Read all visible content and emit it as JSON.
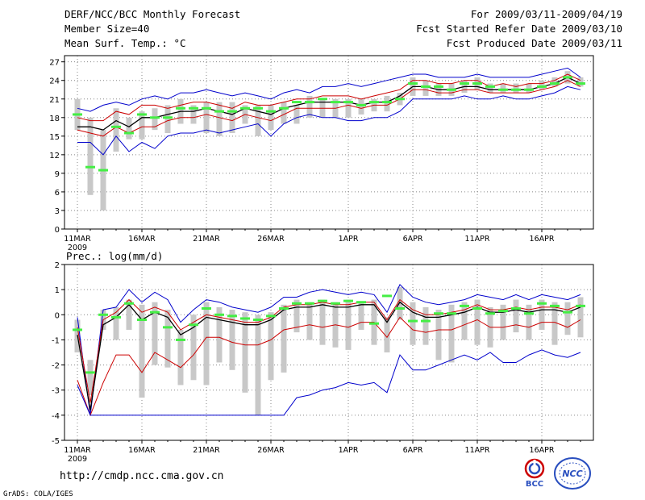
{
  "header": {
    "line1_left": "DERF/NCC/BCC Monthly Forecast",
    "line2_left": "Member Size=40",
    "line3_left": "Mean Surf. Temp.: °C",
    "line1_right": "For 2009/03/11-2009/04/19",
    "line2_right": "Fcst Started Refer Date 2009/03/10",
    "line3_right": "Fcst Produced Date 2009/03/11"
  },
  "footer": {
    "url": "http://cmdp.ncc.cma.gov.cn",
    "credit": "GrADS: COLA/IGES",
    "logo_left_text": "BCC",
    "logo_right_text": "NCC"
  },
  "colors": {
    "envelope": "#0000cc",
    "spread": "#cc0000",
    "mean": "#000000",
    "member_range": "#c8c8c8",
    "median": "#44ee44",
    "grid": "#888888"
  },
  "chart_data": [
    {
      "type": "line",
      "title": "Mean Surf. Temp.: °C",
      "x_ticks": [
        "11MAR",
        "16MAR",
        "21MAR",
        "26MAR",
        "1APR",
        "6APR",
        "11APR",
        "16APR"
      ],
      "x_tick_days": [
        1,
        6,
        11,
        16,
        22,
        27,
        32,
        37
      ],
      "year_label": "2009",
      "xlim": [
        0,
        41
      ],
      "ylim": [
        0,
        28
      ],
      "y_ticks": [
        0,
        3,
        6,
        9,
        12,
        15,
        18,
        21,
        24,
        27
      ],
      "days": [
        1,
        2,
        3,
        4,
        5,
        6,
        7,
        8,
        9,
        10,
        11,
        12,
        13,
        14,
        15,
        16,
        17,
        18,
        19,
        20,
        21,
        22,
        23,
        24,
        25,
        26,
        27,
        28,
        29,
        30,
        31,
        32,
        33,
        34,
        35,
        36,
        37,
        38,
        39,
        40
      ],
      "series": [
        {
          "name": "max",
          "values": [
            19.5,
            19,
            20,
            20.5,
            20,
            21,
            21.5,
            21,
            22,
            22,
            22.5,
            22,
            21.5,
            22,
            21.5,
            21,
            22,
            22.5,
            22,
            23,
            23,
            23.5,
            23,
            23.5,
            24,
            24.5,
            25,
            25,
            24.5,
            24.5,
            24.5,
            25,
            24.5,
            24.5,
            24.5,
            24.5,
            25,
            25.5,
            26,
            24.5
          ]
        },
        {
          "name": "upper",
          "values": [
            18,
            17.5,
            17.5,
            19,
            18.5,
            20,
            20,
            19.5,
            20,
            20.5,
            20.5,
            20,
            19.5,
            20.5,
            20,
            20,
            20.5,
            21,
            21,
            21.5,
            21.5,
            21.5,
            21,
            21.5,
            22,
            22.5,
            24,
            24,
            23.5,
            23.5,
            24,
            24,
            23,
            23.5,
            23,
            23.5,
            23.5,
            24,
            25,
            24
          ]
        },
        {
          "name": "mean",
          "values": [
            16.5,
            16.5,
            16,
            17.5,
            16.5,
            18,
            18,
            18.5,
            19,
            19,
            19.5,
            19,
            18.5,
            19.5,
            19,
            18.5,
            19.5,
            20,
            20.5,
            20.5,
            20.5,
            20.5,
            20,
            20.5,
            20.5,
            21.5,
            23,
            23,
            22.5,
            22.5,
            23,
            23,
            22.5,
            22.5,
            22.5,
            22.5,
            23,
            23.5,
            24.5,
            23.5
          ]
        },
        {
          "name": "lower",
          "values": [
            16,
            15.5,
            15,
            16.5,
            15.5,
            16.5,
            16.5,
            17.5,
            18,
            18,
            18.5,
            18,
            17.5,
            18.5,
            18,
            17.5,
            18.5,
            19.5,
            19.5,
            19.5,
            19.5,
            20,
            19.5,
            20,
            20,
            21,
            22.5,
            22.5,
            22,
            22,
            22.5,
            22.5,
            22,
            22,
            22,
            22,
            22.5,
            23,
            24,
            23
          ]
        },
        {
          "name": "min",
          "values": [
            14,
            14,
            12,
            15,
            12.5,
            14,
            13,
            15,
            15.5,
            15.5,
            16,
            15.5,
            16,
            16.5,
            17,
            15,
            17,
            18,
            18.5,
            18,
            18,
            17.5,
            17.5,
            18,
            18,
            19,
            21,
            21,
            21,
            21,
            21.5,
            21,
            21,
            21.5,
            21,
            21,
            21.5,
            22,
            23,
            22.5
          ]
        }
      ],
      "member_range": [
        [
          16,
          21
        ],
        [
          5.5,
          18
        ],
        [
          3,
          16
        ],
        [
          12.5,
          19.5
        ],
        [
          14.5,
          18
        ],
        [
          14.5,
          19
        ],
        [
          16,
          19.5
        ],
        [
          15.5,
          20
        ],
        [
          17,
          21
        ],
        [
          17,
          20
        ],
        [
          15.5,
          20.5
        ],
        [
          15,
          20.5
        ],
        [
          15.5,
          20.5
        ],
        [
          17,
          20
        ],
        [
          15,
          20
        ],
        [
          16,
          20
        ],
        [
          17,
          20.5
        ],
        [
          17,
          20
        ],
        [
          18,
          21.5
        ],
        [
          18,
          21
        ],
        [
          18,
          21
        ],
        [
          18,
          21
        ],
        [
          18.5,
          21
        ],
        [
          19,
          21
        ],
        [
          19,
          21.5
        ],
        [
          20,
          22
        ],
        [
          21.5,
          24.5
        ],
        [
          21.5,
          24
        ],
        [
          21.5,
          23.5
        ],
        [
          21.5,
          23.5
        ],
        [
          22,
          24
        ],
        [
          22.5,
          24.5
        ],
        [
          22,
          23.5
        ],
        [
          22,
          23.5
        ],
        [
          22,
          23.5
        ],
        [
          22,
          23.5
        ],
        [
          22.5,
          24
        ],
        [
          23,
          24.5
        ],
        [
          23.5,
          25.5
        ],
        [
          23,
          24.5
        ]
      ],
      "median": [
        18.5,
        10,
        9.5,
        16.5,
        15.5,
        18.5,
        18,
        18,
        19.5,
        19.5,
        19.5,
        19,
        19,
        19.5,
        19.5,
        19,
        19.5,
        20.5,
        20.5,
        21,
        20.5,
        20.5,
        20,
        20.5,
        20.5,
        21,
        23.5,
        23,
        23,
        22.5,
        23.5,
        23.5,
        23,
        22.5,
        22.5,
        22.5,
        23,
        23.5,
        24.5,
        23.5
      ]
    },
    {
      "type": "line",
      "title": "Prec.: log(mm/d)",
      "x_ticks": [
        "11MAR",
        "16MAR",
        "21MAR",
        "26MAR",
        "1APR",
        "6APR",
        "11APR",
        "16APR"
      ],
      "x_tick_days": [
        1,
        6,
        11,
        16,
        22,
        27,
        32,
        37
      ],
      "year_label": "2009",
      "xlim": [
        0,
        41
      ],
      "ylim": [
        -5,
        2
      ],
      "y_ticks": [
        -5,
        -4,
        -3,
        -2,
        -1,
        0,
        1,
        2
      ],
      "days": [
        1,
        2,
        3,
        4,
        5,
        6,
        7,
        8,
        9,
        10,
        11,
        12,
        13,
        14,
        15,
        16,
        17,
        18,
        19,
        20,
        21,
        22,
        23,
        24,
        25,
        26,
        27,
        28,
        29,
        30,
        31,
        32,
        33,
        34,
        35,
        36,
        37,
        38,
        39,
        40
      ],
      "series": [
        {
          "name": "max",
          "values": [
            -0.1,
            -4,
            0.2,
            0.3,
            1,
            0.5,
            0.9,
            0.6,
            -0.3,
            0.2,
            0.6,
            0.5,
            0.3,
            0.2,
            0.1,
            0.3,
            0.7,
            0.7,
            0.9,
            1,
            0.9,
            0.8,
            0.9,
            0.8,
            0.1,
            1.2,
            0.7,
            0.5,
            0.4,
            0.5,
            0.6,
            0.8,
            0.7,
            0.6,
            0.8,
            0.6,
            0.8,
            0.7,
            0.6,
            0.8
          ]
        },
        {
          "name": "upper",
          "values": [
            -0.5,
            -3.5,
            -0.2,
            0.1,
            0.6,
            0.1,
            0.3,
            0.1,
            -0.6,
            -0.3,
            0,
            -0.1,
            -0.2,
            -0.3,
            -0.3,
            -0.1,
            0.3,
            0.4,
            0.4,
            0.5,
            0.4,
            0.4,
            0.5,
            0.5,
            -0.2,
            0.6,
            0.2,
            0,
            0,
            0.1,
            0.2,
            0.4,
            0.2,
            0.2,
            0.3,
            0.2,
            0.3,
            0.3,
            0.2,
            0.4
          ]
        },
        {
          "name": "mean",
          "values": [
            -0.8,
            -3.8,
            -0.4,
            -0.1,
            0.4,
            -0.2,
            0.1,
            -0.1,
            -0.8,
            -0.5,
            -0.1,
            -0.2,
            -0.3,
            -0.4,
            -0.4,
            -0.2,
            0.2,
            0.3,
            0.3,
            0.4,
            0.3,
            0.3,
            0.4,
            0.4,
            -0.3,
            0.5,
            0.1,
            -0.1,
            -0.1,
            0,
            0.1,
            0.3,
            0.1,
            0.1,
            0.2,
            0.1,
            0.2,
            0.2,
            0.1,
            0.3
          ]
        },
        {
          "name": "lower",
          "values": [
            -2.6,
            -4,
            -2.7,
            -1.6,
            -1.6,
            -2.3,
            -1.5,
            -1.8,
            -2.1,
            -1.6,
            -0.9,
            -0.9,
            -1.1,
            -1.2,
            -1.2,
            -1,
            -0.6,
            -0.5,
            -0.4,
            -0.5,
            -0.4,
            -0.5,
            -0.3,
            -0.3,
            -0.9,
            -0.1,
            -0.6,
            -0.7,
            -0.6,
            -0.6,
            -0.4,
            -0.2,
            -0.5,
            -0.5,
            -0.4,
            -0.5,
            -0.3,
            -0.3,
            -0.5,
            -0.2
          ]
        },
        {
          "name": "min",
          "values": [
            -2.8,
            -4,
            -4,
            -4,
            -4,
            -4,
            -4,
            -4,
            -4,
            -4,
            -4,
            -4,
            -4,
            -4,
            -4,
            -4,
            -4,
            -3.3,
            -3.2,
            -3.0,
            -2.9,
            -2.7,
            -2.8,
            -2.7,
            -3.1,
            -1.6,
            -2.2,
            -2.2,
            -2.0,
            -1.8,
            -1.6,
            -1.8,
            -1.5,
            -1.9,
            -1.9,
            -1.6,
            -1.4,
            -1.6,
            -1.7,
            -1.5
          ]
        }
      ],
      "member_range": [
        [
          -1.5,
          -0.2
        ],
        [
          -3.2,
          -1.8
        ],
        [
          -0.6,
          0.2
        ],
        [
          -1,
          0.3
        ],
        [
          -0.6,
          0.6
        ],
        [
          -3.3,
          0.4
        ],
        [
          -2,
          0.5
        ],
        [
          -2.1,
          0.2
        ],
        [
          -2.8,
          -0.6
        ],
        [
          -2.6,
          0
        ],
        [
          -2.8,
          0.5
        ],
        [
          -1.9,
          0.3
        ],
        [
          -2.2,
          0.2
        ],
        [
          -3.1,
          0.1
        ],
        [
          -4,
          0
        ],
        [
          -2.6,
          0.1
        ],
        [
          -2.3,
          0.4
        ],
        [
          -0.7,
          0.6
        ],
        [
          -1,
          0.5
        ],
        [
          -1.2,
          0.6
        ],
        [
          -1.3,
          0.5
        ],
        [
          -1.4,
          0.6
        ],
        [
          -0.6,
          0.5
        ],
        [
          -1.2,
          0.6
        ],
        [
          -1.5,
          -0.1
        ],
        [
          -0.2,
          1.1
        ],
        [
          -1.2,
          0.5
        ],
        [
          -1.2,
          0.3
        ],
        [
          -1.8,
          0.2
        ],
        [
          -1.9,
          0.4
        ],
        [
          -1,
          0.5
        ],
        [
          -1.2,
          0.6
        ],
        [
          -1.3,
          0.3
        ],
        [
          -1,
          0.4
        ],
        [
          -0.7,
          0.6
        ],
        [
          -1,
          0.4
        ],
        [
          -0.6,
          0.6
        ],
        [
          -1.2,
          0.5
        ],
        [
          -0.8,
          0.5
        ],
        [
          -0.9,
          0.7
        ]
      ],
      "median": [
        -0.6,
        -2.3,
        0,
        -0.1,
        0.45,
        -0.2,
        0.1,
        -0.5,
        -1,
        -0.4,
        0.25,
        0,
        -0.05,
        -0.15,
        -0.2,
        -0.05,
        0.25,
        0.45,
        0.45,
        0.55,
        0.45,
        0.55,
        0.5,
        -0.35,
        0.75,
        0.25,
        -0.25,
        -0.25,
        0.05,
        0.05,
        0.35,
        0.25,
        0.05,
        0.15,
        0.25,
        0.05,
        0.45,
        0.35,
        0.1,
        0.35
      ]
    }
  ]
}
